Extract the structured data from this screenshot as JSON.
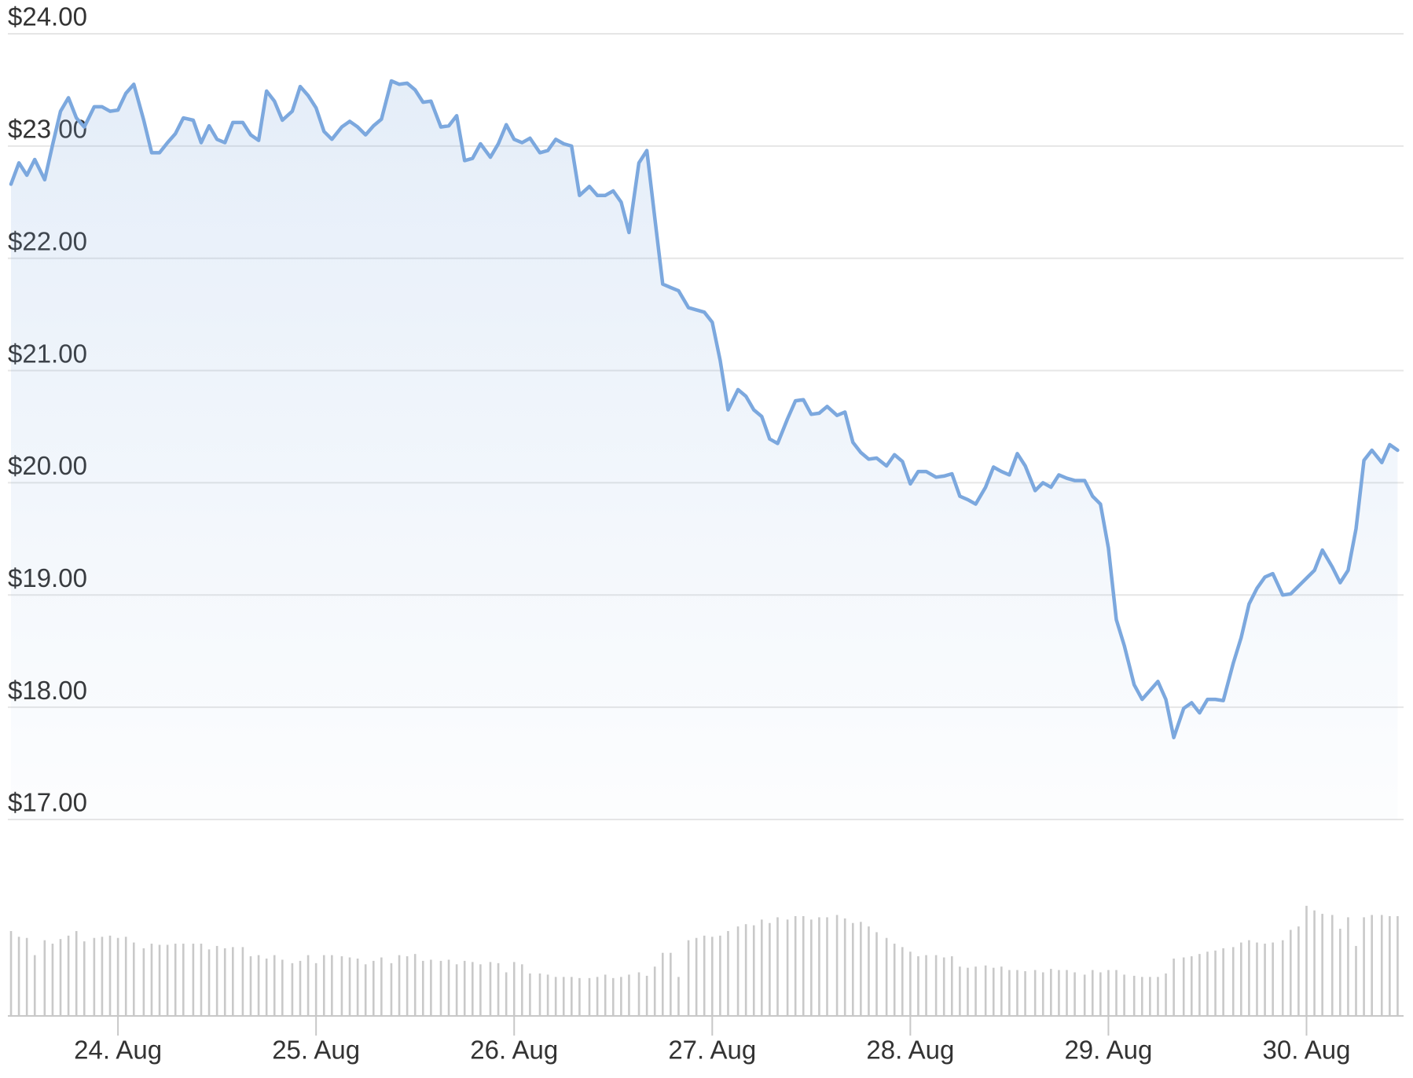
{
  "chart_data": {
    "type": "line",
    "x": [
      23.46,
      23.5,
      23.54,
      23.58,
      23.63,
      23.67,
      23.71,
      23.75,
      23.79,
      23.83,
      23.88,
      23.92,
      23.96,
      24,
      24.04,
      24.08,
      24.13,
      24.17,
      24.21,
      24.25,
      24.29,
      24.33,
      24.38,
      24.42,
      24.46,
      24.5,
      24.54,
      24.58,
      24.63,
      24.67,
      24.71,
      24.75,
      24.79,
      24.83,
      24.88,
      24.92,
      24.96,
      25,
      25.04,
      25.08,
      25.13,
      25.17,
      25.21,
      25.25,
      25.29,
      25.33,
      25.38,
      25.42,
      25.46,
      25.5,
      25.54,
      25.58,
      25.63,
      25.67,
      25.71,
      25.75,
      25.79,
      25.83,
      25.88,
      25.92,
      25.96,
      26,
      26.04,
      26.08,
      26.13,
      26.17,
      26.21,
      26.25,
      26.29,
      26.33,
      26.38,
      26.42,
      26.46,
      26.5,
      26.54,
      26.58,
      26.63,
      26.67,
      26.71,
      26.75,
      26.79,
      26.83,
      26.88,
      26.92,
      26.96,
      27,
      27.04,
      27.08,
      27.13,
      27.17,
      27.21,
      27.25,
      27.29,
      27.33,
      27.38,
      27.42,
      27.46,
      27.5,
      27.54,
      27.58,
      27.63,
      27.67,
      27.71,
      27.75,
      27.79,
      27.83,
      27.88,
      27.92,
      27.96,
      28,
      28.04,
      28.08,
      28.13,
      28.17,
      28.21,
      28.25,
      28.29,
      28.33,
      28.38,
      28.42,
      28.46,
      28.5,
      28.54,
      28.58,
      28.63,
      28.67,
      28.71,
      28.75,
      28.79,
      28.83,
      28.88,
      28.92,
      28.96,
      29,
      29.04,
      29.08,
      29.13,
      29.17,
      29.21,
      29.25,
      29.29,
      29.33,
      29.38,
      29.42,
      29.46,
      29.5,
      29.54,
      29.58,
      29.63,
      29.67,
      29.71,
      29.75,
      29.79,
      29.83,
      29.88,
      29.92,
      29.96,
      30,
      30.04,
      30.08,
      30.13,
      30.17,
      30.21,
      30.25,
      30.29,
      30.33,
      30.38,
      30.42,
      30.46
    ],
    "series": [
      {
        "color": "#7ca8de",
        "values": [
          22.66,
          22.85,
          22.74,
          22.88,
          22.7,
          23.01,
          23.31,
          23.43,
          23.25,
          23.17,
          23.35,
          23.35,
          23.31,
          23.32,
          23.47,
          23.55,
          23.23,
          22.94,
          22.94,
          23.03,
          23.11,
          23.25,
          23.23,
          23.03,
          23.18,
          23.06,
          23.03,
          23.21,
          23.21,
          23.1,
          23.05,
          23.49,
          23.4,
          23.23,
          23.31,
          23.53,
          23.45,
          23.34,
          23.13,
          23.06,
          23.17,
          23.22,
          23.17,
          23.1,
          23.18,
          23.24,
          23.58,
          23.55,
          23.56,
          23.5,
          23.39,
          23.4,
          23.17,
          23.18,
          23.27,
          22.87,
          22.89,
          23.02,
          22.9,
          23.02,
          23.19,
          23.06,
          23.03,
          23.07,
          22.94,
          22.96,
          23.06,
          23.02,
          23.0,
          22.56,
          22.64,
          22.56,
          22.56,
          22.6,
          22.5,
          22.23,
          22.85,
          22.96,
          22.36,
          21.77,
          21.74,
          21.71,
          21.56,
          21.54,
          21.52,
          21.43,
          21.09,
          20.65,
          20.83,
          20.77,
          20.65,
          20.59,
          20.39,
          20.35,
          20.57,
          20.73,
          20.74,
          20.61,
          20.62,
          20.68,
          20.6,
          20.63,
          20.36,
          20.27,
          20.21,
          20.22,
          20.15,
          20.25,
          20.19,
          19.99,
          20.1,
          20.1,
          20.05,
          20.06,
          20.08,
          19.88,
          19.85,
          19.81,
          19.96,
          20.14,
          20.1,
          20.07,
          20.26,
          20.15,
          19.93,
          20.0,
          19.96,
          20.07,
          20.04,
          20.02,
          20.02,
          19.88,
          19.81,
          19.42,
          18.78,
          18.55,
          18.2,
          18.07,
          18.15,
          18.23,
          18.07,
          17.73,
          17.99,
          18.04,
          17.95,
          18.07,
          18.07,
          18.06,
          18.39,
          18.62,
          18.92,
          19.06,
          19.16,
          19.19,
          19.0,
          19.01,
          19.08,
          19.15,
          19.22,
          19.4,
          19.25,
          19.11,
          19.22,
          19.59,
          20.2,
          20.29,
          20.18,
          20.34,
          20.29
        ]
      },
      {
        "type": "bar",
        "axis": "y2",
        "color": "#c9c9c9",
        "values": [
          74,
          69,
          68,
          53,
          66,
          63,
          67,
          70,
          74,
          65,
          68,
          69,
          70,
          68,
          69,
          64,
          59,
          63,
          62,
          62,
          63,
          63,
          63,
          63,
          58,
          61,
          59,
          60,
          60,
          52,
          53,
          50,
          53,
          49,
          46,
          48,
          53,
          46,
          53,
          53,
          52,
          51,
          50,
          45,
          48,
          51,
          46,
          53,
          52,
          54,
          48,
          49,
          48,
          49,
          45,
          48,
          47,
          45,
          47,
          46,
          38,
          47,
          45,
          37,
          37,
          36,
          34,
          34,
          34,
          33,
          33,
          34,
          36,
          33,
          34,
          36,
          38,
          35,
          43,
          55,
          55,
          34,
          66,
          68,
          70,
          69,
          70,
          74,
          78,
          80,
          79,
          84,
          81,
          86,
          84,
          87,
          87,
          84,
          86,
          86,
          88,
          85,
          81,
          82,
          78,
          73,
          68,
          63,
          60,
          56,
          52,
          53,
          53,
          51,
          52,
          43,
          42,
          43,
          44,
          42,
          43,
          40,
          40,
          39,
          40,
          38,
          41,
          40,
          40,
          38,
          36,
          40,
          38,
          40,
          40,
          36,
          35,
          34,
          34,
          34,
          37,
          50,
          51,
          52,
          54,
          56,
          57,
          59,
          60,
          64,
          66,
          64,
          63,
          64,
          66,
          75,
          78,
          96,
          92,
          89,
          88,
          76,
          86,
          61,
          86,
          88,
          88,
          87,
          87
        ]
      }
    ],
    "xlim": [
      23.46,
      30.49
    ],
    "xticks": [
      {
        "value": 24,
        "label": "24. Aug"
      },
      {
        "value": 25,
        "label": "25. Aug"
      },
      {
        "value": 26,
        "label": "26. Aug"
      },
      {
        "value": 27,
        "label": "27. Aug"
      },
      {
        "value": 28,
        "label": "28. Aug"
      },
      {
        "value": 29,
        "label": "29. Aug"
      },
      {
        "value": 30,
        "label": "30. Aug"
      }
    ],
    "ylim": [
      17,
      24
    ],
    "yticks": [
      {
        "value": 17,
        "label": "$17.00"
      },
      {
        "value": 18,
        "label": "$18.00"
      },
      {
        "value": 19,
        "label": "$19.00"
      },
      {
        "value": 20,
        "label": "$20.00"
      },
      {
        "value": 21,
        "label": "$21.00"
      },
      {
        "value": 22,
        "label": "$22.00"
      },
      {
        "value": 23,
        "label": "$23.00"
      },
      {
        "value": 24,
        "label": "$24.00"
      }
    ],
    "y2lim": [
      0,
      100
    ],
    "grid": true
  }
}
